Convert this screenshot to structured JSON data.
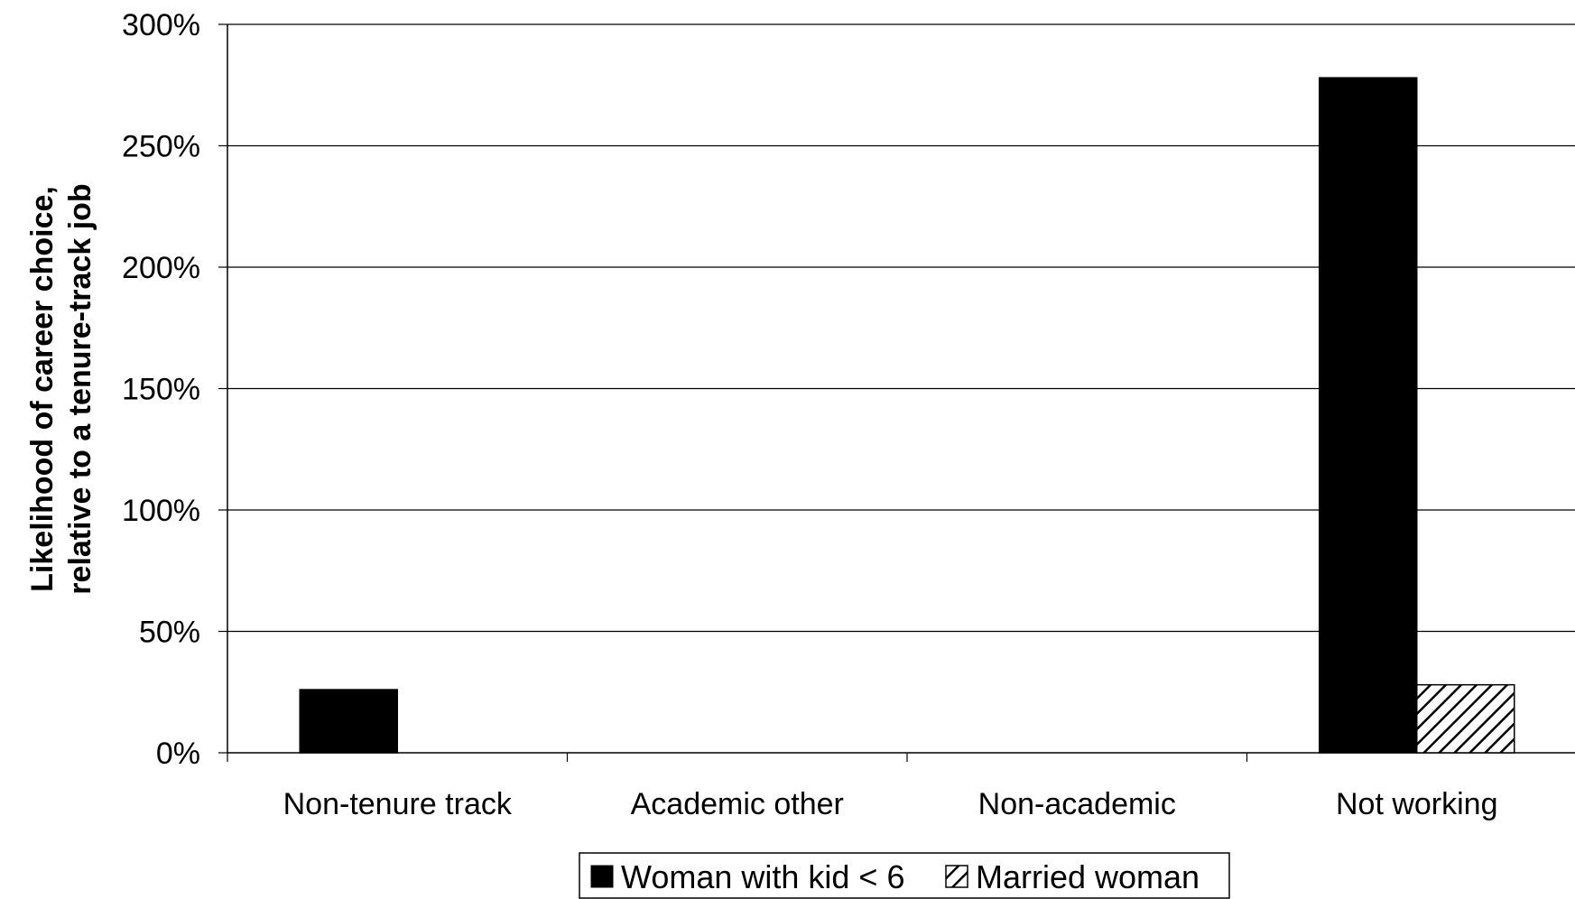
{
  "chart_data": {
    "type": "bar",
    "categories": [
      "Non-tenure track",
      "Academic other",
      "Non-academic",
      "Not working"
    ],
    "series": [
      {
        "name": "Woman with kid < 6",
        "values": [
          26,
          0,
          0,
          278
        ],
        "color": "#000000",
        "pattern": "solid"
      },
      {
        "name": "Married woman",
        "values": [
          0,
          0,
          0,
          28
        ],
        "color": "#000000",
        "pattern": "diagonal-hatch"
      }
    ],
    "title": "",
    "xlabel": "",
    "ylabel": [
      "Likelihood of career choice,",
      "relative to a tenure-track job"
    ],
    "ylim": [
      0,
      300
    ],
    "yticks": [
      0,
      50,
      100,
      150,
      200,
      250,
      300
    ],
    "ytick_labels": [
      "0%",
      "50%",
      "100%",
      "150%",
      "200%",
      "250%",
      "300%"
    ],
    "grid": true,
    "legend_position": "bottom-center"
  }
}
